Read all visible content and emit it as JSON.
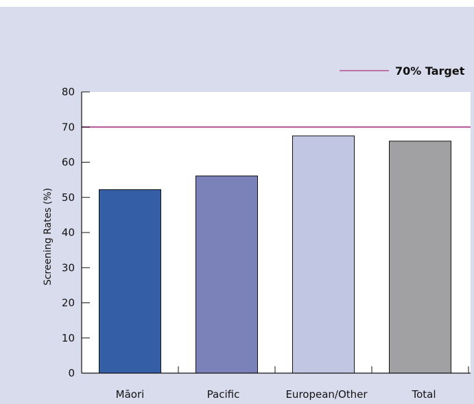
{
  "chart_data": {
    "type": "bar",
    "categories": [
      "Māori",
      "Pacific",
      "European/Other",
      "Total"
    ],
    "values": [
      52.2,
      56.1,
      67.5,
      66.0
    ],
    "ylabel": "Screening Rates (%)",
    "xlabel": "",
    "ylim": [
      0,
      80
    ],
    "yticks": [
      0,
      10,
      20,
      30,
      40,
      50,
      60,
      70,
      80
    ],
    "grid": false,
    "bar_colors": [
      "#345ea5",
      "#7a82b9",
      "#c1c6e2",
      "#a1a1a3"
    ],
    "target": {
      "value": 70,
      "label": "70% Target",
      "color": "#b14f94"
    },
    "legend_position": "top-right"
  }
}
